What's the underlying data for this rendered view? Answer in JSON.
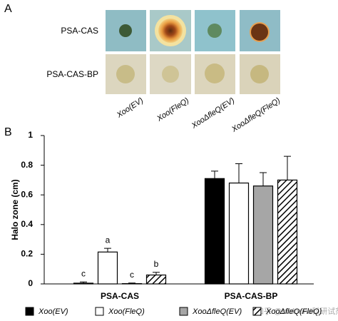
{
  "panel_a": {
    "label": "A",
    "rows": [
      "PSA-CAS",
      "PSA-CAS-BP"
    ],
    "columns": [
      "Xoo(EV)",
      "Xoo(FleQ)",
      "XooΔfleQ(EV)",
      "XooΔfleQ(FleQ)"
    ]
  },
  "chart_data": {
    "type": "bar",
    "panel_label": "B",
    "y_label": "Halo zone (cm)",
    "categories": [
      "PSA-CAS",
      "PSA-CAS-BP"
    ],
    "ylim": [
      0,
      1
    ],
    "yticks": [
      0,
      0.2,
      0.4,
      0.6,
      0.8,
      1
    ],
    "grid": false,
    "series": [
      {
        "name": "Xoo(EV)",
        "color": "#000000",
        "hatch": false,
        "values": [
          0.005,
          0.71
        ],
        "errors": [
          0.008,
          0.05
        ],
        "letters": [
          "c",
          null
        ]
      },
      {
        "name": "Xoo(FleQ)",
        "color": "#ffffff",
        "hatch": false,
        "values": [
          0.215,
          0.68
        ],
        "errors": [
          0.025,
          0.13
        ],
        "letters": [
          "a",
          null
        ]
      },
      {
        "name": "XooΔfleQ(EV)",
        "color": "#a6a6a6",
        "hatch": false,
        "values": [
          0.002,
          0.66
        ],
        "errors": [
          0.004,
          0.09
        ],
        "letters": [
          "c",
          null
        ]
      },
      {
        "name": "XooΔfleQ(FleQ)",
        "color": "#ffffff",
        "hatch": true,
        "values": [
          0.06,
          0.7
        ],
        "errors": [
          0.018,
          0.16
        ],
        "letters": [
          "b",
          null
        ]
      }
    ],
    "legend": "bottom",
    "watermark": "知乎 @biofound科研试剂"
  }
}
